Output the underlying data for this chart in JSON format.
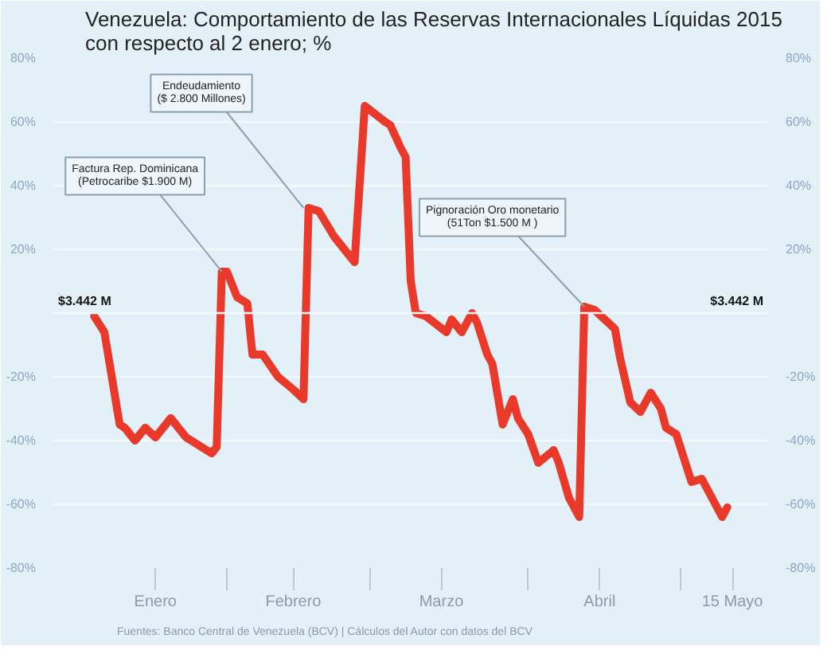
{
  "chart_data": {
    "type": "line",
    "title": "Venezuela: Comportamiento de las Reservas Internacionales Líquidas 2015\ncon respecto al 2 enero; %",
    "x": [
      "2015-01-06",
      "2015-01-08",
      "2015-01-11",
      "2015-01-12",
      "2015-01-14",
      "2015-01-16",
      "2015-01-18",
      "2015-01-21",
      "2015-01-23",
      "2015-01-24",
      "2015-01-27",
      "2015-01-29",
      "2015-01-30",
      "2015-01-31",
      "2015-02-01",
      "2015-02-03",
      "2015-02-05",
      "2015-02-06",
      "2015-02-08",
      "2015-02-11",
      "2015-02-14",
      "2015-02-16",
      "2015-02-17",
      "2015-02-19",
      "2015-02-22",
      "2015-02-24",
      "2015-02-26",
      "2015-02-28",
      "2015-03-04",
      "2015-03-05",
      "2015-03-07",
      "2015-03-08",
      "2015-03-09",
      "2015-03-10",
      "2015-03-12",
      "2015-03-16",
      "2015-03-17",
      "2015-03-19",
      "2015-03-21",
      "2015-03-22",
      "2015-03-24",
      "2015-03-25",
      "2015-03-27",
      "2015-03-29",
      "2015-03-30",
      "2015-04-01",
      "2015-04-03",
      "2015-04-06",
      "2015-04-07",
      "2015-04-09",
      "2015-04-11",
      "2015-04-12",
      "2015-04-14",
      "2015-04-16",
      "2015-04-18",
      "2015-04-19",
      "2015-04-21",
      "2015-04-23",
      "2015-04-25",
      "2015-04-27",
      "2015-04-28",
      "2015-04-30",
      "2015-05-03",
      "2015-05-05",
      "2015-05-07",
      "2015-05-09",
      "2015-05-10"
    ],
    "series": [
      {
        "color": "#e8392b",
        "values": [
          -1,
          -6,
          -35,
          -36,
          -40,
          -36,
          -39,
          -33,
          -37,
          -39,
          -42,
          -44,
          -42,
          13,
          13,
          5,
          3,
          -13,
          -13,
          -20,
          -24,
          -27,
          33,
          32,
          24,
          20,
          16,
          65,
          60,
          59,
          52,
          49,
          10,
          0,
          -1,
          -6,
          -2,
          -6,
          0,
          -3,
          -13,
          -16,
          -35,
          -27,
          -33,
          -38,
          -47,
          -43,
          -47,
          -58,
          -64,
          2,
          1,
          -2,
          -5,
          -14,
          -28,
          -31,
          -25,
          -30,
          -36,
          -38,
          -53,
          -52,
          -58,
          -64,
          -61
        ]
      }
    ],
    "ylim": [
      -80,
      80
    ],
    "yticks": [
      {
        "value": -80,
        "label": "-80%"
      },
      {
        "value": -60,
        "label": "-60%"
      },
      {
        "value": -40,
        "label": "-40%"
      },
      {
        "value": -20,
        "label": "-20%"
      },
      {
        "value": 20,
        "label": "20%"
      },
      {
        "value": 40,
        "label": "40%"
      },
      {
        "value": 60,
        "label": "60%"
      },
      {
        "value": 80,
        "label": "80%"
      }
    ],
    "y2lim": [
      -80,
      80
    ],
    "y2ticks": [
      {
        "value": -80,
        "label": "-80%"
      },
      {
        "value": -60,
        "label": "-60%"
      },
      {
        "value": -40,
        "label": "-40%"
      },
      {
        "value": -20,
        "label": "-20%"
      },
      {
        "value": 20,
        "label": "20%"
      },
      {
        "value": 40,
        "label": "40%"
      },
      {
        "value": 60,
        "label": "60%"
      },
      {
        "value": 80,
        "label": "80%"
      }
    ],
    "ref_lines": [
      {
        "axis": "y",
        "value": 0,
        "label": "$3.442 M"
      }
    ],
    "xlim": [
      "2014-12-29",
      "2015-05-18"
    ],
    "xticks": [
      {
        "value": "2015-01-18",
        "label": "Enero"
      },
      {
        "value": "2015-02-01",
        "label": null
      },
      {
        "value": "2015-02-14",
        "label": "Febrero"
      },
      {
        "value": "2015-03-01",
        "label": null
      },
      {
        "value": "2015-03-15",
        "label": "Marzo"
      },
      {
        "value": "2015-04-01",
        "label": null
      },
      {
        "value": "2015-04-15",
        "label": "Abril"
      },
      {
        "value": "2015-05-01",
        "label": null
      },
      {
        "value": "2015-05-11",
        "label": "15 Mayo"
      }
    ],
    "grid": "y",
    "marker": "none",
    "line_style": "solid",
    "annotations": [
      {
        "text": "Factura Rep. Dominicana\n(Petrocaribe $1.900 M)",
        "x": "2015-01-31",
        "y": 13
      },
      {
        "text": "Endeudamiento\n($ 2.800 Millones)",
        "x": "2015-02-16",
        "y": 33
      },
      {
        "text": "Pignoración Oro monetario\n(51Ton $1.500 M )",
        "x": "2015-04-12",
        "y": 2
      },
      "Fuentes: Banco Central de Venezuela (BCV) | Cálculos del Autor  con datos del BCV"
    ]
  }
}
